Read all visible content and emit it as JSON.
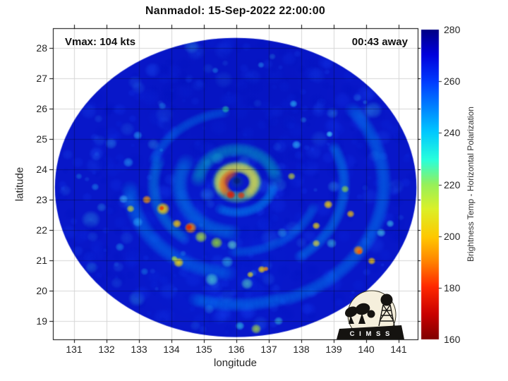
{
  "title": "Nanmadol: 15-Sep-2022 22:00:00",
  "annotations": {
    "vmax": "Vmax: 104 kts",
    "eta": "00:43 away"
  },
  "axes": {
    "xlabel": "longitude",
    "ylabel": "latitude",
    "x_ticks": [
      131,
      132,
      133,
      134,
      135,
      136,
      137,
      138,
      139,
      140,
      141
    ],
    "y_ticks": [
      28,
      27,
      26,
      25,
      24,
      23,
      22,
      21,
      20,
      19
    ],
    "x_range": [
      130.35,
      141.6
    ],
    "y_range": [
      18.4,
      28.65
    ],
    "grid": true
  },
  "colorbar": {
    "label": "Brightness Temp - Horizontal Polarization",
    "min": 160,
    "max": 280,
    "ticks": [
      280,
      260,
      240,
      220,
      200,
      180,
      160
    ],
    "stops": [
      {
        "p": 0.0,
        "c": "#000084"
      },
      {
        "p": 0.08,
        "c": "#0000dc"
      },
      {
        "p": 0.17,
        "c": "#003cff"
      },
      {
        "p": 0.25,
        "c": "#0082ff"
      },
      {
        "p": 0.33,
        "c": "#00c8ff"
      },
      {
        "p": 0.42,
        "c": "#28ffdc"
      },
      {
        "p": 0.5,
        "c": "#96f05a"
      },
      {
        "p": 0.58,
        "c": "#dcf028"
      },
      {
        "p": 0.67,
        "c": "#ffc800"
      },
      {
        "p": 0.75,
        "c": "#ff8200"
      },
      {
        "p": 0.83,
        "c": "#ff2800"
      },
      {
        "p": 0.92,
        "c": "#c80000"
      },
      {
        "p": 1.0,
        "c": "#800000"
      }
    ]
  },
  "logo": {
    "text": "C I M S S"
  },
  "chart_data": {
    "type": "heatmap",
    "title": "Nanmadol: 15-Sep-2022 22:00:00",
    "xlabel": "longitude",
    "ylabel": "latitude",
    "value_label": "Brightness Temp - Horizontal Polarization",
    "value_range": [
      160,
      280
    ],
    "storm_center": {
      "lon": 136.0,
      "lat": 23.58
    },
    "disk": {
      "lon": 135.98,
      "lat": 23.4,
      "rlon": 5.57,
      "rlat": 4.93
    },
    "base_color": "#0817c9",
    "noise": {
      "seed": 7,
      "count": 620
    },
    "features": [
      {
        "t": "blob",
        "x": 136.0,
        "y": 26.5,
        "r": 3.3,
        "c": "#0010b0",
        "al": 0.25
      },
      {
        "t": "blob",
        "x": 135.3,
        "y": 21.3,
        "r": 3.0,
        "c": "#0030e8",
        "al": 0.18
      },
      {
        "t": "arc",
        "x": 136.02,
        "y": 23.49,
        "r": 4.52,
        "a0": -38,
        "a1": 70,
        "w": 0.35,
        "c": "#009cf8",
        "al": 0.5
      },
      {
        "t": "arc",
        "x": 136.02,
        "y": 23.49,
        "r": 4.46,
        "a0": 72,
        "a1": 108,
        "w": 0.35,
        "c": "#00aaff",
        "al": 0.5
      },
      {
        "t": "arc",
        "x": 136.02,
        "y": 23.49,
        "r": 3.3,
        "a0": 95,
        "a1": 180,
        "w": 0.39,
        "c": "#00a4f8",
        "al": 0.45
      },
      {
        "t": "arc",
        "x": 136.02,
        "y": 23.49,
        "r": 3.3,
        "a0": -25,
        "a1": 55,
        "w": 0.28,
        "c": "#00b4f8",
        "al": 0.45
      },
      {
        "t": "arc",
        "x": 136.02,
        "y": 23.49,
        "r": 2.72,
        "a0": 200,
        "a1": 262,
        "w": 0.26,
        "c": "#0092f0",
        "al": 0.45
      },
      {
        "t": "arc",
        "x": 136.02,
        "y": 23.49,
        "r": 2.57,
        "a0": 130,
        "a1": 200,
        "w": 0.3,
        "c": "#00c8e8",
        "al": 0.4
      },
      {
        "t": "arc",
        "x": 136.02,
        "y": 23.49,
        "r": 2.5,
        "a0": 20,
        "a1": 95,
        "w": 0.26,
        "c": "#0098f0",
        "al": 0.4
      },
      {
        "t": "arc",
        "x": 136.02,
        "y": 23.49,
        "r": 1.78,
        "a0": 95,
        "a1": 210,
        "w": 0.39,
        "c": "#00b4f0",
        "al": 0.45
      },
      {
        "t": "arc",
        "x": 136.02,
        "y": 23.58,
        "r": 1.2,
        "a0": 185,
        "a1": 355,
        "w": 0.35,
        "c": "#00e0c0",
        "al": 0.5
      },
      {
        "t": "arc",
        "x": 136.02,
        "y": 23.58,
        "r": 1.13,
        "a0": 10,
        "a1": 120,
        "w": 0.26,
        "c": "#00c0ff",
        "al": 0.5
      },
      {
        "t": "blob",
        "x": 132.96,
        "y": 22.26,
        "r": 0.17,
        "c": "#30b4ff",
        "al": 0.6
      },
      {
        "t": "blob",
        "x": 132.52,
        "y": 23.02,
        "r": 0.15,
        "c": "#48c8ff",
        "al": 0.6
      },
      {
        "t": "blob",
        "x": 135.24,
        "y": 20.37,
        "r": 0.22,
        "c": "#50dcd2",
        "al": 0.7
      },
      {
        "t": "blob",
        "x": 136.33,
        "y": 20.23,
        "r": 0.2,
        "c": "#5ce6be",
        "al": 0.6
      },
      {
        "t": "blob",
        "x": 135.72,
        "y": 20.95,
        "r": 0.2,
        "c": "#38c8e8",
        "al": 0.6
      },
      {
        "t": "blob",
        "x": 136.11,
        "y": 18.84,
        "r": 0.15,
        "c": "#30c8e8",
        "al": 0.7
      },
      {
        "t": "blob",
        "x": 137.3,
        "y": 19.0,
        "r": 0.15,
        "c": "#38d0e0",
        "al": 0.6
      },
      {
        "t": "blob",
        "x": 140.46,
        "y": 21.91,
        "r": 0.15,
        "c": "#48d0e8",
        "al": 0.7
      },
      {
        "t": "blob",
        "x": 140.74,
        "y": 22.21,
        "r": 0.13,
        "c": "#40c8e8",
        "al": 0.7
      },
      {
        "t": "blob",
        "x": 138.93,
        "y": 21.56,
        "r": 0.17,
        "c": "#40d0e0",
        "al": 0.6
      },
      {
        "t": "blob",
        "x": 135.67,
        "y": 25.98,
        "r": 0.13,
        "c": "#28d0a8",
        "al": 0.7
      },
      {
        "t": "blob",
        "x": 137.76,
        "y": 26.16,
        "r": 0.13,
        "c": "#2cc0f8",
        "al": 0.7
      },
      {
        "t": "blob",
        "x": 138.87,
        "y": 25.16,
        "r": 0.11,
        "c": "#48d8ff",
        "al": 0.8
      },
      {
        "t": "blob",
        "x": 136.76,
        "y": 27.44,
        "r": 0.11,
        "c": "#2898f0",
        "al": 0.6
      },
      {
        "t": "blob",
        "x": 135.35,
        "y": 27.26,
        "r": 0.11,
        "c": "#2090e8",
        "al": 0.55
      },
      {
        "t": "blob",
        "x": 133.72,
        "y": 26.09,
        "r": 0.13,
        "c": "#2090e8",
        "al": 0.55
      },
      {
        "t": "blob",
        "x": 132.96,
        "y": 25.12,
        "r": 0.15,
        "c": "#2cb4f8",
        "al": 0.6
      },
      {
        "t": "blob",
        "x": 132.67,
        "y": 24.23,
        "r": 0.17,
        "c": "#28a8f8",
        "al": 0.6
      },
      {
        "t": "blob",
        "x": 137.85,
        "y": 24.81,
        "r": 0.15,
        "c": "#30c0ff",
        "al": 0.7
      },
      {
        "t": "blob",
        "x": 138.07,
        "y": 25.63,
        "r": 0.11,
        "c": "#2890e0",
        "al": 0.5
      },
      {
        "t": "blob",
        "x": 131.65,
        "y": 23.42,
        "r": 0.13,
        "c": "#2098f0",
        "al": 0.55
      },
      {
        "t": "blob",
        "x": 131.15,
        "y": 23.77,
        "r": 0.11,
        "c": "#1c88e0",
        "al": 0.5
      },
      {
        "t": "blob",
        "x": 132.41,
        "y": 21.44,
        "r": 0.15,
        "c": "#209cf0",
        "al": 0.55
      },
      {
        "t": "blob",
        "x": 133.17,
        "y": 20.63,
        "r": 0.13,
        "c": "#1c90e8",
        "al": 0.5
      },
      {
        "t": "blob",
        "x": 137.41,
        "y": 21.91,
        "r": 0.17,
        "c": "#30b8e8",
        "al": 0.5
      },
      {
        "t": "blob",
        "x": 134.91,
        "y": 21.77,
        "r": 0.2,
        "c": "#b4ee32",
        "al": 0.8
      },
      {
        "t": "blob",
        "x": 135.39,
        "y": 21.58,
        "r": 0.2,
        "c": "#a0e628",
        "al": 0.8
      },
      {
        "t": "blob",
        "x": 135.87,
        "y": 21.51,
        "r": 0.17,
        "c": "#64dcc8",
        "al": 0.7
      },
      {
        "t": "blob",
        "x": 132.74,
        "y": 22.7,
        "r": 0.13,
        "c": "#e0e020",
        "al": 0.75
      },
      {
        "t": "blob",
        "x": 134.09,
        "y": 21.05,
        "r": 0.11,
        "c": "#b8ee30",
        "al": 0.8
      },
      {
        "t": "blob",
        "x": 136.43,
        "y": 20.53,
        "r": 0.11,
        "c": "#e8e020",
        "al": 0.8
      },
      {
        "t": "blob",
        "x": 136.61,
        "y": 18.74,
        "r": 0.17,
        "c": "#aadc3c",
        "al": 0.8
      },
      {
        "t": "blob",
        "x": 139.35,
        "y": 23.35,
        "r": 0.13,
        "c": "#a8e830",
        "al": 0.7
      },
      {
        "t": "blob",
        "x": 137.7,
        "y": 23.77,
        "r": 0.13,
        "c": "#d8e820",
        "al": 0.7
      },
      {
        "t": "blob",
        "x": 138.46,
        "y": 21.56,
        "r": 0.13,
        "c": "#f0e028",
        "al": 0.75
      },
      {
        "t": "blob",
        "x": 134.59,
        "y": 22.07,
        "r": 0.2,
        "c": "#ff9100",
        "al": 0.9
      },
      {
        "t": "blob",
        "x": 134.17,
        "y": 22.21,
        "r": 0.15,
        "c": "#ffd200",
        "al": 0.85
      },
      {
        "t": "blob",
        "x": 133.74,
        "y": 22.7,
        "r": 0.22,
        "c": "#ffd800",
        "al": 0.9
      },
      {
        "t": "blob",
        "x": 133.24,
        "y": 23.0,
        "r": 0.15,
        "c": "#ff9e00",
        "al": 0.85
      },
      {
        "t": "blob",
        "x": 134.22,
        "y": 20.93,
        "r": 0.17,
        "c": "#ffe000",
        "al": 0.85
      },
      {
        "t": "blob",
        "x": 136.78,
        "y": 20.7,
        "r": 0.13,
        "c": "#ffd800",
        "al": 0.85
      },
      {
        "t": "blob",
        "x": 138.83,
        "y": 22.84,
        "r": 0.15,
        "c": "#ffd800",
        "al": 0.85
      },
      {
        "t": "blob",
        "x": 139.52,
        "y": 22.53,
        "r": 0.13,
        "c": "#ffc800",
        "al": 0.8
      },
      {
        "t": "blob",
        "x": 139.76,
        "y": 21.33,
        "r": 0.17,
        "c": "#ff9000",
        "al": 0.9
      },
      {
        "t": "blob",
        "x": 140.17,
        "y": 20.98,
        "r": 0.13,
        "c": "#ffd000",
        "al": 0.85
      },
      {
        "t": "blob",
        "x": 138.46,
        "y": 22.14,
        "r": 0.13,
        "c": "#ffe000",
        "al": 0.8
      },
      {
        "t": "blob",
        "x": 134.54,
        "y": 22.09,
        "r": 0.11,
        "c": "#e02000",
        "al": 0.95
      },
      {
        "t": "blob",
        "x": 133.7,
        "y": 22.72,
        "r": 0.09,
        "c": "#e83000",
        "al": 0.9
      },
      {
        "t": "blob",
        "x": 136.91,
        "y": 20.72,
        "r": 0.09,
        "c": "#ff8c00",
        "al": 0.85
      },
      {
        "t": "blob",
        "x": 139.8,
        "y": 21.28,
        "r": 0.09,
        "c": "#ff5000",
        "al": 0.9
      },
      {
        "t": "arc",
        "x": 136.02,
        "y": 23.58,
        "r": 0.57,
        "a0": 0,
        "a1": 360,
        "w": 0.3,
        "c": "#70e878",
        "al": 0.8
      },
      {
        "t": "arc",
        "x": 136.02,
        "y": 23.58,
        "r": 0.54,
        "a0": 150,
        "a1": 420,
        "w": 0.26,
        "c": "#ffe23c",
        "al": 0.85
      },
      {
        "t": "arc",
        "x": 136.07,
        "y": 23.49,
        "r": 0.46,
        "a0": 140,
        "a1": 255,
        "w": 0.24,
        "c": "#ff5a00",
        "al": 0.9
      },
      {
        "t": "blob",
        "x": 135.83,
        "y": 23.16,
        "r": 0.15,
        "c": "#e01800",
        "al": 0.95
      },
      {
        "t": "blob",
        "x": 136.15,
        "y": 23.14,
        "r": 0.13,
        "c": "#e83000",
        "al": 0.8
      },
      {
        "t": "blob",
        "x": 136.02,
        "y": 23.6,
        "r": 0.24,
        "c": "#0a2fa8",
        "al": 1
      },
      {
        "t": "blob",
        "x": 136.02,
        "y": 23.62,
        "r": 0.13,
        "c": "#06207e",
        "al": 1
      }
    ]
  }
}
